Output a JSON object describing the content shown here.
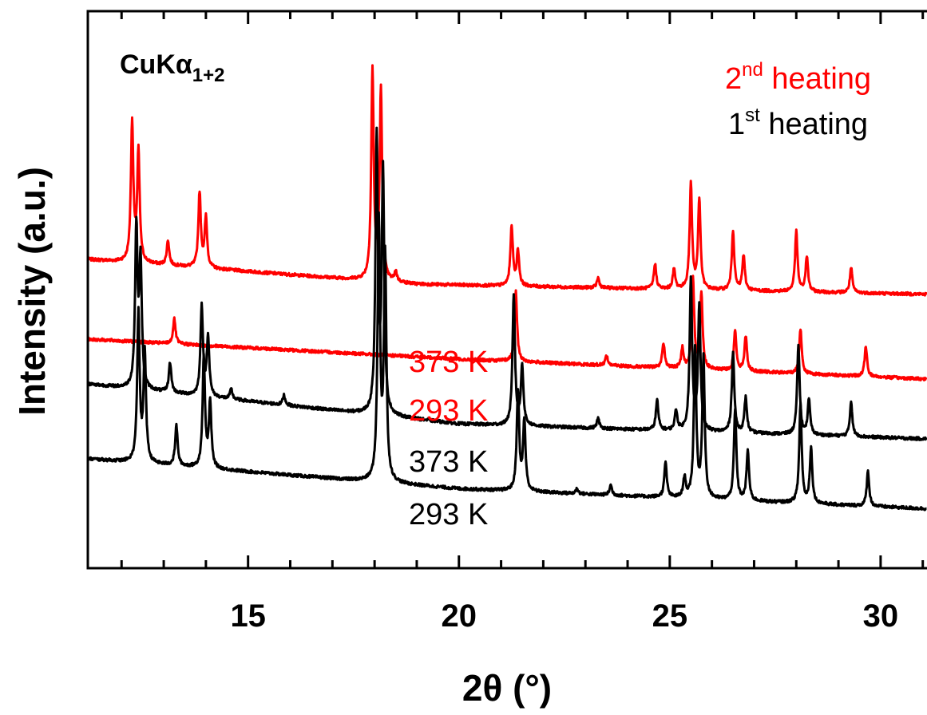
{
  "chart_data": {
    "type": "line",
    "xlabel": "2θ (°)",
    "ylabel": "Intensity (a.u.)",
    "xlim": [
      11.2,
      31.1
    ],
    "x_ticks": [
      15,
      20,
      25,
      30
    ],
    "x_tick_labels": [
      "15",
      "20",
      "25",
      "30"
    ],
    "annotations": {
      "radiation": {
        "main": "CuKα",
        "sub": "1+2"
      },
      "legend_2nd": {
        "base": "2",
        "sup": "nd",
        "text": " heating",
        "color": "#ff0000"
      },
      "legend_1st": {
        "base": "1",
        "sup": "st",
        "text": " heating",
        "color": "#000000"
      }
    },
    "series": [
      {
        "name": "373 K",
        "heating": "2nd",
        "color": "#ff0000",
        "baseline": [
          [
            11.2,
            0.6
          ],
          [
            19.0,
            0.55
          ],
          [
            31.1,
            0.53
          ]
        ],
        "peaks": [
          [
            12.25,
            0.28
          ],
          [
            12.4,
            0.22
          ],
          [
            13.1,
            0.05
          ],
          [
            13.85,
            0.15
          ],
          [
            14.0,
            0.1
          ],
          [
            17.95,
            0.42
          ],
          [
            18.15,
            0.38
          ],
          [
            18.5,
            0.02
          ],
          [
            21.25,
            0.12
          ],
          [
            21.4,
            0.07
          ],
          [
            23.3,
            0.02
          ],
          [
            24.65,
            0.05
          ],
          [
            25.1,
            0.04
          ],
          [
            25.5,
            0.21
          ],
          [
            25.7,
            0.18
          ],
          [
            26.5,
            0.12
          ],
          [
            26.75,
            0.07
          ],
          [
            28.0,
            0.12
          ],
          [
            28.25,
            0.07
          ],
          [
            29.3,
            0.05
          ]
        ]
      },
      {
        "name": "293 K",
        "heating": "2nd",
        "color": "#ff0000",
        "baseline": [
          [
            11.2,
            0.44
          ],
          [
            20.0,
            0.4
          ],
          [
            31.1,
            0.36
          ]
        ],
        "peaks": [
          [
            13.25,
            0.05
          ],
          [
            21.35,
            0.14
          ],
          [
            23.5,
            0.02
          ],
          [
            24.85,
            0.05
          ],
          [
            25.3,
            0.04
          ],
          [
            25.55,
            0.18
          ],
          [
            25.75,
            0.15
          ],
          [
            26.55,
            0.08
          ],
          [
            26.8,
            0.07
          ],
          [
            28.1,
            0.09
          ],
          [
            29.65,
            0.06
          ]
        ]
      },
      {
        "name": "373 K",
        "heating": "1st",
        "color": "#000000",
        "baseline": [
          [
            11.2,
            0.35
          ],
          [
            20.0,
            0.27
          ],
          [
            31.1,
            0.24
          ]
        ],
        "peaks": [
          [
            12.35,
            0.32
          ],
          [
            12.45,
            0.25
          ],
          [
            13.15,
            0.06
          ],
          [
            13.9,
            0.18
          ],
          [
            14.05,
            0.12
          ],
          [
            14.6,
            0.02
          ],
          [
            15.85,
            0.02
          ],
          [
            18.05,
            0.55
          ],
          [
            18.2,
            0.48
          ],
          [
            21.3,
            0.26
          ],
          [
            21.5,
            0.12
          ],
          [
            23.3,
            0.02
          ],
          [
            24.7,
            0.06
          ],
          [
            25.15,
            0.04
          ],
          [
            25.5,
            0.3
          ],
          [
            25.7,
            0.25
          ],
          [
            26.5,
            0.16
          ],
          [
            26.8,
            0.07
          ],
          [
            28.05,
            0.18
          ],
          [
            28.3,
            0.07
          ],
          [
            29.3,
            0.07
          ]
        ]
      },
      {
        "name": "293 K",
        "heating": "1st",
        "color": "#000000",
        "baseline": [
          [
            11.2,
            0.2
          ],
          [
            20.0,
            0.14
          ],
          [
            31.1,
            0.1
          ]
        ],
        "peaks": [
          [
            12.4,
            0.3
          ],
          [
            12.55,
            0.22
          ],
          [
            13.3,
            0.08
          ],
          [
            13.95,
            0.22
          ],
          [
            14.1,
            0.13
          ],
          [
            18.1,
            0.52
          ],
          [
            18.25,
            0.45
          ],
          [
            21.4,
            0.2
          ],
          [
            21.55,
            0.14
          ],
          [
            22.8,
            0.01
          ],
          [
            23.6,
            0.02
          ],
          [
            24.9,
            0.07
          ],
          [
            25.35,
            0.04
          ],
          [
            25.6,
            0.3
          ],
          [
            25.8,
            0.28
          ],
          [
            26.55,
            0.18
          ],
          [
            26.85,
            0.1
          ],
          [
            28.1,
            0.2
          ],
          [
            28.35,
            0.11
          ],
          [
            29.7,
            0.07
          ]
        ]
      }
    ]
  }
}
